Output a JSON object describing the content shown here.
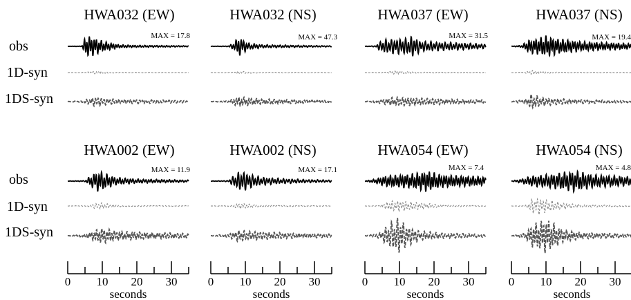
{
  "figure": {
    "row_labels": [
      "obs",
      "1D-syn",
      "1DS-syn"
    ],
    "xlabel": "seconds",
    "x_ticks": [
      "0",
      "10",
      "20",
      "30"
    ],
    "x_range": [
      0,
      35
    ]
  },
  "chart_data": [
    {
      "type": "line",
      "title": "HWA032 (EW)",
      "max_label": "MAX = 17.8",
      "xlabel": "",
      "series": [
        {
          "name": "obs",
          "style": "solid",
          "color": "#000000",
          "envelope": [
            [
              0,
              0.01
            ],
            [
              4,
              0.02
            ],
            [
              5,
              0.8
            ],
            [
              6,
              1.0
            ],
            [
              7,
              0.9
            ],
            [
              8,
              0.8
            ],
            [
              10,
              0.5
            ],
            [
              12,
              0.35
            ],
            [
              15,
              0.15
            ],
            [
              20,
              0.1
            ],
            [
              28,
              0.08
            ],
            [
              35,
              0.05
            ]
          ]
        },
        {
          "name": "1D-syn",
          "style": "dashed",
          "color": "#888888",
          "envelope": [
            [
              0,
              0.01
            ],
            [
              5,
              0.03
            ],
            [
              7,
              0.12
            ],
            [
              9,
              0.15
            ],
            [
              11,
              0.08
            ],
            [
              15,
              0.03
            ],
            [
              35,
              0.02
            ]
          ]
        },
        {
          "name": "1DS-syn",
          "style": "dashed",
          "color": "#555555",
          "envelope": [
            [
              0,
              0.02
            ],
            [
              4,
              0.1
            ],
            [
              6,
              0.35
            ],
            [
              8,
              0.6
            ],
            [
              10,
              0.45
            ],
            [
              14,
              0.3
            ],
            [
              20,
              0.25
            ],
            [
              30,
              0.18
            ],
            [
              35,
              0.12
            ]
          ]
        }
      ]
    },
    {
      "type": "line",
      "title": "HWA032 (NS)",
      "max_label": "MAX = 47.3",
      "xlabel": "",
      "series": [
        {
          "name": "obs",
          "style": "solid",
          "color": "#000000",
          "envelope": [
            [
              0,
              0.01
            ],
            [
              5,
              0.03
            ],
            [
              7,
              0.4
            ],
            [
              8,
              1.0
            ],
            [
              9,
              0.7
            ],
            [
              11,
              0.3
            ],
            [
              15,
              0.15
            ],
            [
              25,
              0.1
            ],
            [
              35,
              0.05
            ]
          ]
        },
        {
          "name": "1D-syn",
          "style": "dashed",
          "color": "#888888",
          "envelope": [
            [
              0,
              0.01
            ],
            [
              6,
              0.03
            ],
            [
              8,
              0.15
            ],
            [
              10,
              0.1
            ],
            [
              14,
              0.04
            ],
            [
              35,
              0.02
            ]
          ]
        },
        {
          "name": "1DS-syn",
          "style": "dashed",
          "color": "#555555",
          "envelope": [
            [
              0,
              0.02
            ],
            [
              5,
              0.1
            ],
            [
              8,
              0.6
            ],
            [
              10,
              0.5
            ],
            [
              14,
              0.35
            ],
            [
              22,
              0.25
            ],
            [
              35,
              0.12
            ]
          ]
        }
      ]
    },
    {
      "type": "line",
      "title": "HWA037 (EW)",
      "max_label": "MAX = 31.5",
      "xlabel": "",
      "series": [
        {
          "name": "obs",
          "style": "solid",
          "color": "#000000",
          "envelope": [
            [
              0,
              0.01
            ],
            [
              3,
              0.05
            ],
            [
              5,
              0.6
            ],
            [
              8,
              0.7
            ],
            [
              12,
              0.75
            ],
            [
              14,
              1.0
            ],
            [
              16,
              0.5
            ],
            [
              22,
              0.4
            ],
            [
              30,
              0.3
            ],
            [
              35,
              0.2
            ]
          ]
        },
        {
          "name": "1D-syn",
          "style": "dashed",
          "color": "#888888",
          "envelope": [
            [
              0,
              0.01
            ],
            [
              6,
              0.05
            ],
            [
              9,
              0.2
            ],
            [
              11,
              0.12
            ],
            [
              16,
              0.05
            ],
            [
              35,
              0.03
            ]
          ]
        },
        {
          "name": "1DS-syn",
          "style": "dashed",
          "color": "#555555",
          "envelope": [
            [
              0,
              0.02
            ],
            [
              4,
              0.2
            ],
            [
              8,
              0.55
            ],
            [
              12,
              0.5
            ],
            [
              18,
              0.4
            ],
            [
              26,
              0.3
            ],
            [
              35,
              0.2
            ]
          ]
        }
      ]
    },
    {
      "type": "line",
      "title": "HWA037 (NS)",
      "max_label": "MAX = 19.4",
      "xlabel": "",
      "series": [
        {
          "name": "obs",
          "style": "solid",
          "color": "#000000",
          "envelope": [
            [
              0,
              0.01
            ],
            [
              3,
              0.1
            ],
            [
              5,
              0.6
            ],
            [
              8,
              0.8
            ],
            [
              10,
              1.0
            ],
            [
              14,
              0.7
            ],
            [
              20,
              0.45
            ],
            [
              28,
              0.35
            ],
            [
              35,
              0.25
            ]
          ]
        },
        {
          "name": "1D-syn",
          "style": "dashed",
          "color": "#888888",
          "envelope": [
            [
              0,
              0.01
            ],
            [
              4,
              0.05
            ],
            [
              6,
              0.25
            ],
            [
              8,
              0.12
            ],
            [
              14,
              0.04
            ],
            [
              35,
              0.02
            ]
          ]
        },
        {
          "name": "1DS-syn",
          "style": "dashed",
          "color": "#555555",
          "envelope": [
            [
              0,
              0.02
            ],
            [
              4,
              0.3
            ],
            [
              6,
              1.0
            ],
            [
              8,
              0.6
            ],
            [
              12,
              0.4
            ],
            [
              20,
              0.25
            ],
            [
              35,
              0.12
            ]
          ]
        }
      ]
    },
    {
      "type": "line",
      "title": "HWA002 (EW)",
      "max_label": "MAX = 11.9",
      "xlabel": "",
      "series": [
        {
          "name": "obs",
          "style": "solid",
          "color": "#000000",
          "envelope": [
            [
              0,
              0.01
            ],
            [
              5,
              0.05
            ],
            [
              7,
              0.6
            ],
            [
              9,
              1.0
            ],
            [
              11,
              0.7
            ],
            [
              14,
              0.35
            ],
            [
              20,
              0.2
            ],
            [
              28,
              0.15
            ],
            [
              35,
              0.1
            ]
          ]
        },
        {
          "name": "1D-syn",
          "style": "dashed",
          "color": "#888888",
          "envelope": [
            [
              0,
              0.01
            ],
            [
              6,
              0.05
            ],
            [
              8,
              0.3
            ],
            [
              10,
              0.35
            ],
            [
              12,
              0.2
            ],
            [
              16,
              0.06
            ],
            [
              35,
              0.03
            ]
          ]
        },
        {
          "name": "1DS-syn",
          "style": "dashed",
          "color": "#555555",
          "envelope": [
            [
              0,
              0.02
            ],
            [
              5,
              0.2
            ],
            [
              8,
              0.7
            ],
            [
              10,
              1.0
            ],
            [
              14,
              0.6
            ],
            [
              20,
              0.45
            ],
            [
              30,
              0.35
            ],
            [
              35,
              0.25
            ]
          ]
        }
      ]
    },
    {
      "type": "line",
      "title": "HWA002 (NS)",
      "max_label": "MAX = 17.1",
      "xlabel": "",
      "series": [
        {
          "name": "obs",
          "style": "solid",
          "color": "#000000",
          "envelope": [
            [
              0,
              0.01
            ],
            [
              5,
              0.05
            ],
            [
              7,
              0.6
            ],
            [
              9,
              1.0
            ],
            [
              11,
              0.7
            ],
            [
              14,
              0.4
            ],
            [
              20,
              0.25
            ],
            [
              28,
              0.15
            ],
            [
              35,
              0.1
            ]
          ]
        },
        {
          "name": "1D-syn",
          "style": "dashed",
          "color": "#888888",
          "envelope": [
            [
              0,
              0.01
            ],
            [
              6,
              0.05
            ],
            [
              8,
              0.3
            ],
            [
              10,
              0.25
            ],
            [
              14,
              0.08
            ],
            [
              35,
              0.03
            ]
          ]
        },
        {
          "name": "1DS-syn",
          "style": "dashed",
          "color": "#555555",
          "envelope": [
            [
              0,
              0.02
            ],
            [
              5,
              0.2
            ],
            [
              8,
              0.75
            ],
            [
              10,
              0.6
            ],
            [
              14,
              0.5
            ],
            [
              22,
              0.35
            ],
            [
              35,
              0.2
            ]
          ]
        }
      ]
    },
    {
      "type": "line",
      "title": "HWA054 (EW)",
      "max_label": "MAX =  7.4",
      "xlabel": "",
      "series": [
        {
          "name": "obs",
          "style": "solid",
          "color": "#000000",
          "envelope": [
            [
              0,
              0.02
            ],
            [
              3,
              0.2
            ],
            [
              6,
              0.5
            ],
            [
              10,
              0.6
            ],
            [
              14,
              0.7
            ],
            [
              18,
              1.0
            ],
            [
              22,
              0.6
            ],
            [
              28,
              0.5
            ],
            [
              35,
              0.4
            ]
          ]
        },
        {
          "name": "1D-syn",
          "style": "dashed",
          "color": "#888888",
          "envelope": [
            [
              0,
              0.01
            ],
            [
              4,
              0.05
            ],
            [
              7,
              0.5
            ],
            [
              10,
              0.6
            ],
            [
              13,
              0.45
            ],
            [
              18,
              0.3
            ],
            [
              22,
              0.1
            ],
            [
              35,
              0.03
            ]
          ]
        },
        {
          "name": "1DS-syn",
          "style": "dashed",
          "color": "#555555",
          "envelope": [
            [
              0,
              0.02
            ],
            [
              4,
              0.3
            ],
            [
              7,
              1.5
            ],
            [
              10,
              2.4
            ],
            [
              12,
              1.3
            ],
            [
              16,
              0.6
            ],
            [
              22,
              0.35
            ],
            [
              30,
              0.25
            ],
            [
              35,
              0.15
            ]
          ]
        }
      ]
    },
    {
      "type": "line",
      "title": "HWA054 (NS)",
      "max_label": "MAX =  4.8",
      "xlabel": "",
      "series": [
        {
          "name": "obs",
          "style": "solid",
          "color": "#000000",
          "envelope": [
            [
              0,
              0.02
            ],
            [
              3,
              0.2
            ],
            [
              6,
              0.5
            ],
            [
              10,
              0.6
            ],
            [
              14,
              0.8
            ],
            [
              18,
              1.0
            ],
            [
              24,
              0.6
            ],
            [
              30,
              0.5
            ],
            [
              35,
              0.4
            ]
          ]
        },
        {
          "name": "1D-syn",
          "style": "dashed",
          "color": "#888888",
          "envelope": [
            [
              0,
              0.01
            ],
            [
              4,
              0.05
            ],
            [
              6,
              0.8
            ],
            [
              8,
              0.9
            ],
            [
              10,
              0.7
            ],
            [
              14,
              0.4
            ],
            [
              20,
              0.15
            ],
            [
              35,
              0.04
            ]
          ]
        },
        {
          "name": "1DS-syn",
          "style": "dashed",
          "color": "#555555",
          "envelope": [
            [
              0,
              0.02
            ],
            [
              4,
              0.3
            ],
            [
              6,
              1.4
            ],
            [
              8,
              1.8
            ],
            [
              10,
              2.2
            ],
            [
              12,
              1.6
            ],
            [
              15,
              0.8
            ],
            [
              20,
              0.4
            ],
            [
              30,
              0.25
            ],
            [
              35,
              0.15
            ]
          ]
        }
      ]
    }
  ]
}
